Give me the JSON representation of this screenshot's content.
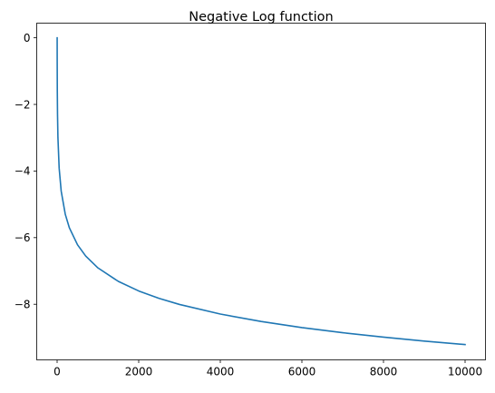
{
  "chart_data": {
    "type": "line",
    "title": "Negative Log function",
    "xlabel": "",
    "ylabel": "",
    "function": "y = -ln(x)",
    "x_domain": [
      1,
      10000
    ],
    "xlim": [
      -500,
      10500
    ],
    "ylim": [
      -9.67,
      0.44
    ],
    "x_ticks": [
      0,
      2000,
      4000,
      6000,
      8000,
      10000
    ],
    "x_tick_labels": [
      "0",
      "2000",
      "4000",
      "6000",
      "8000",
      "10000"
    ],
    "y_ticks": [
      0,
      -2,
      -4,
      -6,
      -8
    ],
    "y_tick_labels": [
      "0",
      "−2",
      "−4",
      "−6",
      "−8"
    ],
    "grid": false,
    "legend": "none",
    "series": [
      {
        "color": "#1f77b4",
        "x": [
          1,
          2,
          5,
          10,
          20,
          50,
          100,
          200,
          300,
          500,
          700,
          1000,
          1500,
          2000,
          2500,
          3000,
          4000,
          5000,
          6000,
          7000,
          8000,
          9000,
          10000
        ],
        "y": [
          0,
          -0.693,
          -1.609,
          -2.303,
          -2.996,
          -3.912,
          -4.605,
          -5.298,
          -5.704,
          -6.215,
          -6.551,
          -6.908,
          -7.313,
          -7.601,
          -7.824,
          -8.006,
          -8.294,
          -8.517,
          -8.7,
          -8.854,
          -8.987,
          -9.105,
          -9.21
        ]
      }
    ]
  }
}
